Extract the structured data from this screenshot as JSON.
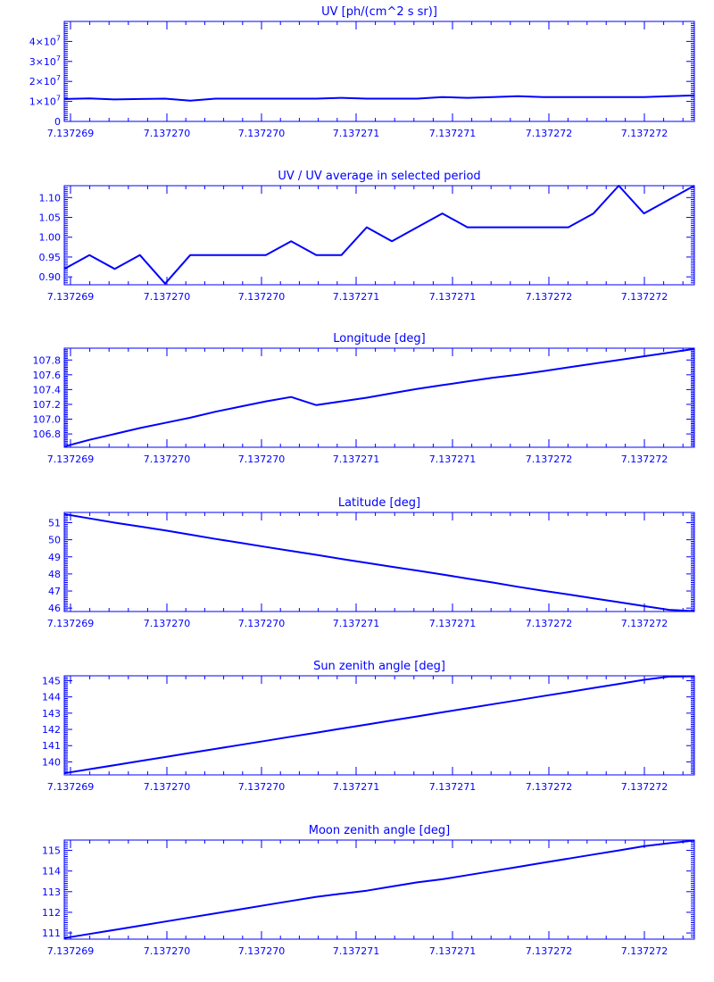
{
  "chart_data": [
    {
      "type": "line",
      "title": "UV [ph/(cm^2 s sr)]",
      "xlabel": "",
      "ylabel": "",
      "x_tick_labels": [
        "7.137269",
        "7.137270",
        "7.137270",
        "7.137271",
        "7.137271",
        "7.137272",
        "7.137272"
      ],
      "ylim": [
        0,
        50000000
      ],
      "y_ticks": [
        0,
        10000000,
        20000000,
        30000000,
        40000000
      ],
      "y_tick_labels": [
        {
          "base": "0",
          "exp": ""
        },
        {
          "base": "1×10",
          "exp": "7"
        },
        {
          "base": "2×10",
          "exp": "7"
        },
        {
          "base": "3×10",
          "exp": "7"
        },
        {
          "base": "4×10",
          "exp": "7"
        }
      ],
      "series": [
        {
          "x": [
            0,
            1,
            2,
            3,
            4,
            5,
            6,
            7,
            8,
            9,
            10,
            11,
            12,
            13,
            14,
            15,
            16,
            17,
            18,
            19,
            20,
            21,
            22,
            23,
            24,
            25
          ],
          "values": [
            11200000,
            11500000,
            11000000,
            11200000,
            11400000,
            10400000,
            11400000,
            11400000,
            11400000,
            11400000,
            11400000,
            11800000,
            11400000,
            11400000,
            11400000,
            12200000,
            11800000,
            12200000,
            12600000,
            12200000,
            12200000,
            12200000,
            12200000,
            12200000,
            12600000,
            13000000
          ]
        }
      ],
      "x_span": [
        0,
        25
      ]
    },
    {
      "type": "line",
      "title": "UV / UV average in selected period",
      "xlabel": "",
      "ylabel": "",
      "x_tick_labels": [
        "7.137269",
        "7.137270",
        "7.137270",
        "7.137271",
        "7.137271",
        "7.137272",
        "7.137272"
      ],
      "ylim": [
        0.88,
        1.13
      ],
      "y_ticks": [
        0.9,
        0.95,
        1.0,
        1.05,
        1.1
      ],
      "y_tick_labels": [
        "0.90",
        "0.95",
        "1.00",
        "1.05",
        "1.10"
      ],
      "series": [
        {
          "x": [
            0,
            1,
            2,
            3,
            4,
            5,
            6,
            7,
            8,
            9,
            10,
            11,
            12,
            13,
            14,
            15,
            16,
            17,
            18,
            19,
            20,
            21,
            22,
            23,
            24,
            25
          ],
          "values": [
            0.92,
            0.955,
            0.92,
            0.955,
            0.883,
            0.955,
            0.955,
            0.955,
            0.955,
            0.99,
            0.955,
            0.955,
            1.025,
            0.99,
            1.025,
            1.06,
            1.025,
            1.025,
            1.025,
            1.025,
            1.025,
            1.06,
            1.13,
            1.06,
            1.095,
            1.13
          ]
        }
      ],
      "x_span": [
        0,
        25
      ]
    },
    {
      "type": "line",
      "title": "Longitude [deg]",
      "xlabel": "",
      "ylabel": "",
      "x_tick_labels": [
        "7.137269",
        "7.137270",
        "7.137270",
        "7.137271",
        "7.137271",
        "7.137272",
        "7.137272"
      ],
      "ylim": [
        106.62,
        107.96
      ],
      "y_ticks": [
        106.8,
        107.0,
        107.2,
        107.4,
        107.6,
        107.8
      ],
      "y_tick_labels": [
        "106.8",
        "107.0",
        "107.2",
        "107.4",
        "107.6",
        "107.8"
      ],
      "series": [
        {
          "x": [
            0,
            1,
            2,
            3,
            4,
            5,
            6,
            7,
            8,
            9,
            10,
            11,
            12,
            13,
            14,
            15,
            16,
            17,
            18,
            19,
            20,
            21,
            22,
            23,
            24,
            25
          ],
          "values": [
            106.63,
            106.72,
            106.8,
            106.88,
            106.95,
            107.02,
            107.1,
            107.17,
            107.24,
            107.3,
            107.19,
            107.24,
            107.29,
            107.35,
            107.41,
            107.46,
            107.51,
            107.56,
            107.6,
            107.65,
            107.7,
            107.75,
            107.8,
            107.85,
            107.9,
            107.95
          ]
        }
      ],
      "x_span": [
        0,
        25
      ]
    },
    {
      "type": "line",
      "title": "Latitude [deg]",
      "xlabel": "",
      "ylabel": "",
      "x_tick_labels": [
        "7.137269",
        "7.137270",
        "7.137270",
        "7.137271",
        "7.137271",
        "7.137272",
        "7.137272"
      ],
      "ylim": [
        45.8,
        51.6
      ],
      "y_ticks": [
        46,
        47,
        48,
        49,
        50,
        51
      ],
      "y_tick_labels": [
        "46",
        "47",
        "48",
        "49",
        "50",
        "51"
      ],
      "series": [
        {
          "x": [
            0,
            1,
            2,
            3,
            4,
            5,
            6,
            7,
            8,
            9,
            10,
            11,
            12,
            13,
            14,
            15,
            16,
            17,
            18,
            19,
            20,
            21,
            22,
            23,
            24,
            25
          ],
          "values": [
            51.5,
            51.25,
            51.0,
            50.78,
            50.55,
            50.3,
            50.05,
            49.82,
            49.58,
            49.35,
            49.12,
            48.88,
            48.65,
            48.42,
            48.2,
            47.97,
            47.73,
            47.5,
            47.25,
            47.02,
            46.8,
            46.57,
            46.35,
            46.12,
            45.9,
            45.82
          ]
        }
      ],
      "x_span": [
        0,
        25
      ]
    },
    {
      "type": "line",
      "title": "Sun zenith angle [deg]",
      "xlabel": "",
      "ylabel": "",
      "x_tick_labels": [
        "7.137269",
        "7.137270",
        "7.137270",
        "7.137271",
        "7.137271",
        "7.137272",
        "7.137272"
      ],
      "ylim": [
        139.2,
        145.3
      ],
      "y_ticks": [
        140,
        141,
        142,
        143,
        144,
        145
      ],
      "y_tick_labels": [
        "140",
        "141",
        "142",
        "143",
        "144",
        "145"
      ],
      "series": [
        {
          "x": [
            0,
            1,
            2,
            3,
            4,
            5,
            6,
            7,
            8,
            9,
            10,
            11,
            12,
            13,
            14,
            15,
            16,
            17,
            18,
            19,
            20,
            21,
            22,
            23,
            24,
            25
          ],
          "values": [
            139.3,
            139.55,
            139.8,
            140.05,
            140.3,
            140.55,
            140.8,
            141.05,
            141.3,
            141.55,
            141.8,
            142.05,
            142.3,
            142.55,
            142.8,
            143.05,
            143.3,
            143.55,
            143.8,
            144.05,
            144.3,
            144.55,
            144.8,
            145.05,
            145.25,
            145.27
          ]
        }
      ],
      "x_span": [
        0,
        25
      ]
    },
    {
      "type": "line",
      "title": "Moon zenith angle [deg]",
      "xlabel": "",
      "ylabel": "",
      "x_tick_labels": [
        "7.137269",
        "7.137270",
        "7.137270",
        "7.137271",
        "7.137271",
        "7.137272",
        "7.137272"
      ],
      "ylim": [
        110.7,
        115.5
      ],
      "y_ticks": [
        111,
        112,
        113,
        114,
        115
      ],
      "y_tick_labels": [
        "111",
        "112",
        "113",
        "114",
        "115"
      ],
      "series": [
        {
          "x": [
            0,
            1,
            2,
            3,
            4,
            5,
            6,
            7,
            8,
            9,
            10,
            11,
            12,
            13,
            14,
            15,
            16,
            17,
            18,
            19,
            20,
            21,
            22,
            23,
            24,
            25
          ],
          "values": [
            110.75,
            110.95,
            111.15,
            111.35,
            111.55,
            111.75,
            111.95,
            112.15,
            112.35,
            112.55,
            112.75,
            112.9,
            113.05,
            113.25,
            113.45,
            113.6,
            113.8,
            114.0,
            114.2,
            114.4,
            114.6,
            114.8,
            115.0,
            115.2,
            115.35,
            115.48
          ]
        }
      ],
      "x_span": [
        0,
        25
      ]
    }
  ]
}
